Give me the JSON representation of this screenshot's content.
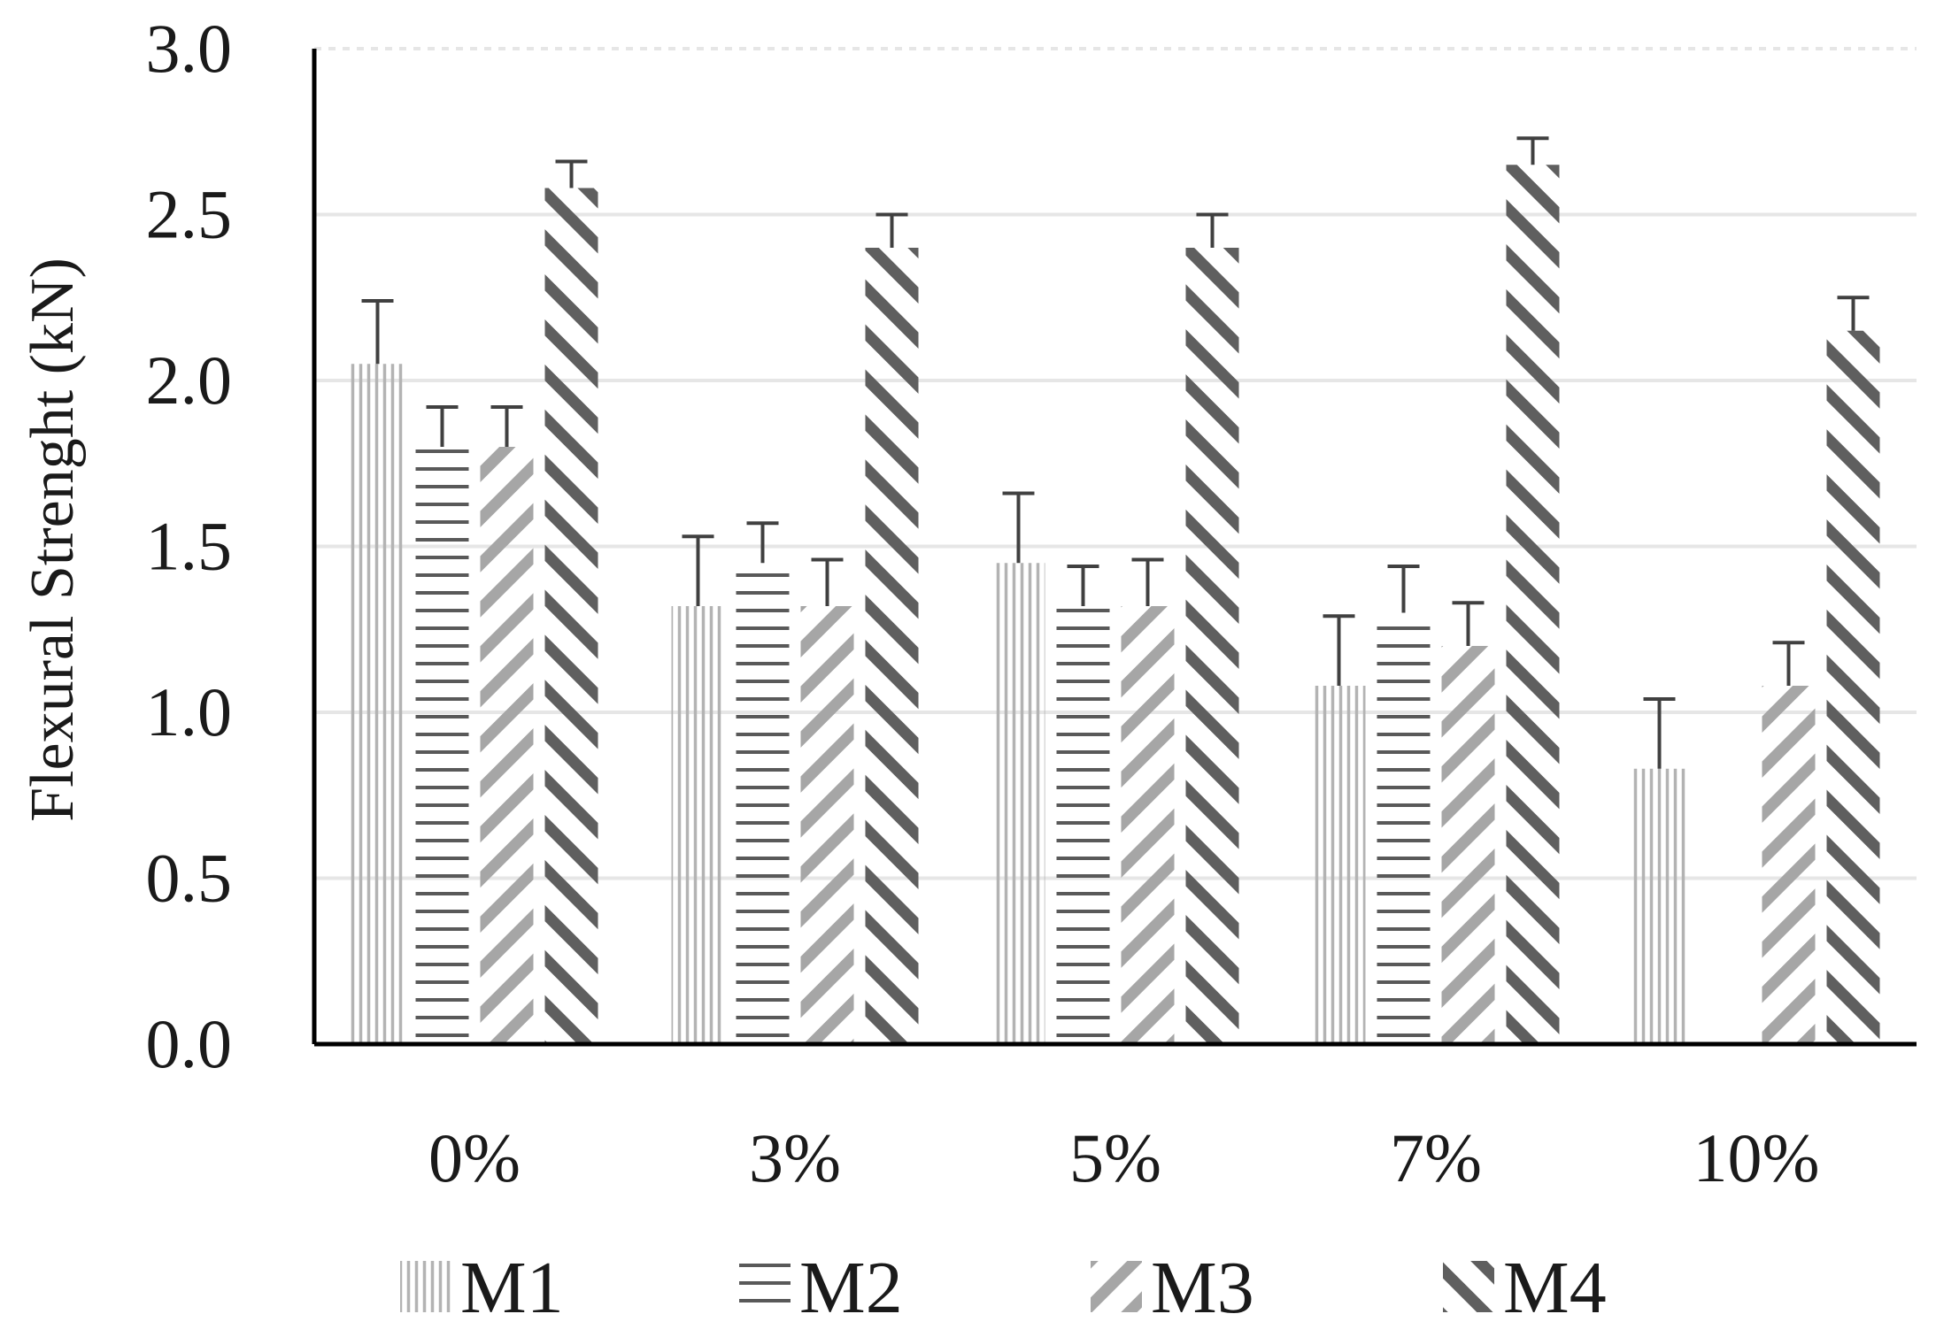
{
  "chart_data": {
    "type": "bar",
    "title": "",
    "xlabel": "",
    "ylabel": "Flexural Strenght (kN)",
    "ylim": [
      0,
      3.0
    ],
    "yticks": [
      "0.0",
      "0.5",
      "1.0",
      "1.5",
      "2.0",
      "2.5",
      "3.0"
    ],
    "categories": [
      "0%",
      "3%",
      "5%",
      "7%",
      "10%"
    ],
    "grid": true,
    "legend_position": "bottom",
    "series": [
      {
        "name": "M1",
        "pattern": "vertical-lines",
        "color": "#b3b3b3",
        "values": [
          2.05,
          1.32,
          1.45,
          1.08,
          0.83
        ],
        "errors": [
          0.19,
          0.21,
          0.21,
          0.21,
          0.21
        ]
      },
      {
        "name": "M2",
        "pattern": "horizontal-lines",
        "color": "#595959",
        "values": [
          1.8,
          1.45,
          1.32,
          1.3,
          0
        ],
        "errors": [
          0.12,
          0.12,
          0.12,
          0.14,
          0
        ]
      },
      {
        "name": "M3",
        "pattern": "back-diagonal",
        "color": "#a6a6a6",
        "values": [
          1.8,
          1.32,
          1.32,
          1.2,
          1.08
        ],
        "errors": [
          0.12,
          0.14,
          0.14,
          0.13,
          0.13
        ]
      },
      {
        "name": "M4",
        "pattern": "forward-diagonal",
        "color": "#5f5f5f",
        "values": [
          2.58,
          2.4,
          2.4,
          2.65,
          2.15
        ],
        "errors": [
          0.08,
          0.1,
          0.1,
          0.08,
          0.1
        ]
      }
    ]
  }
}
